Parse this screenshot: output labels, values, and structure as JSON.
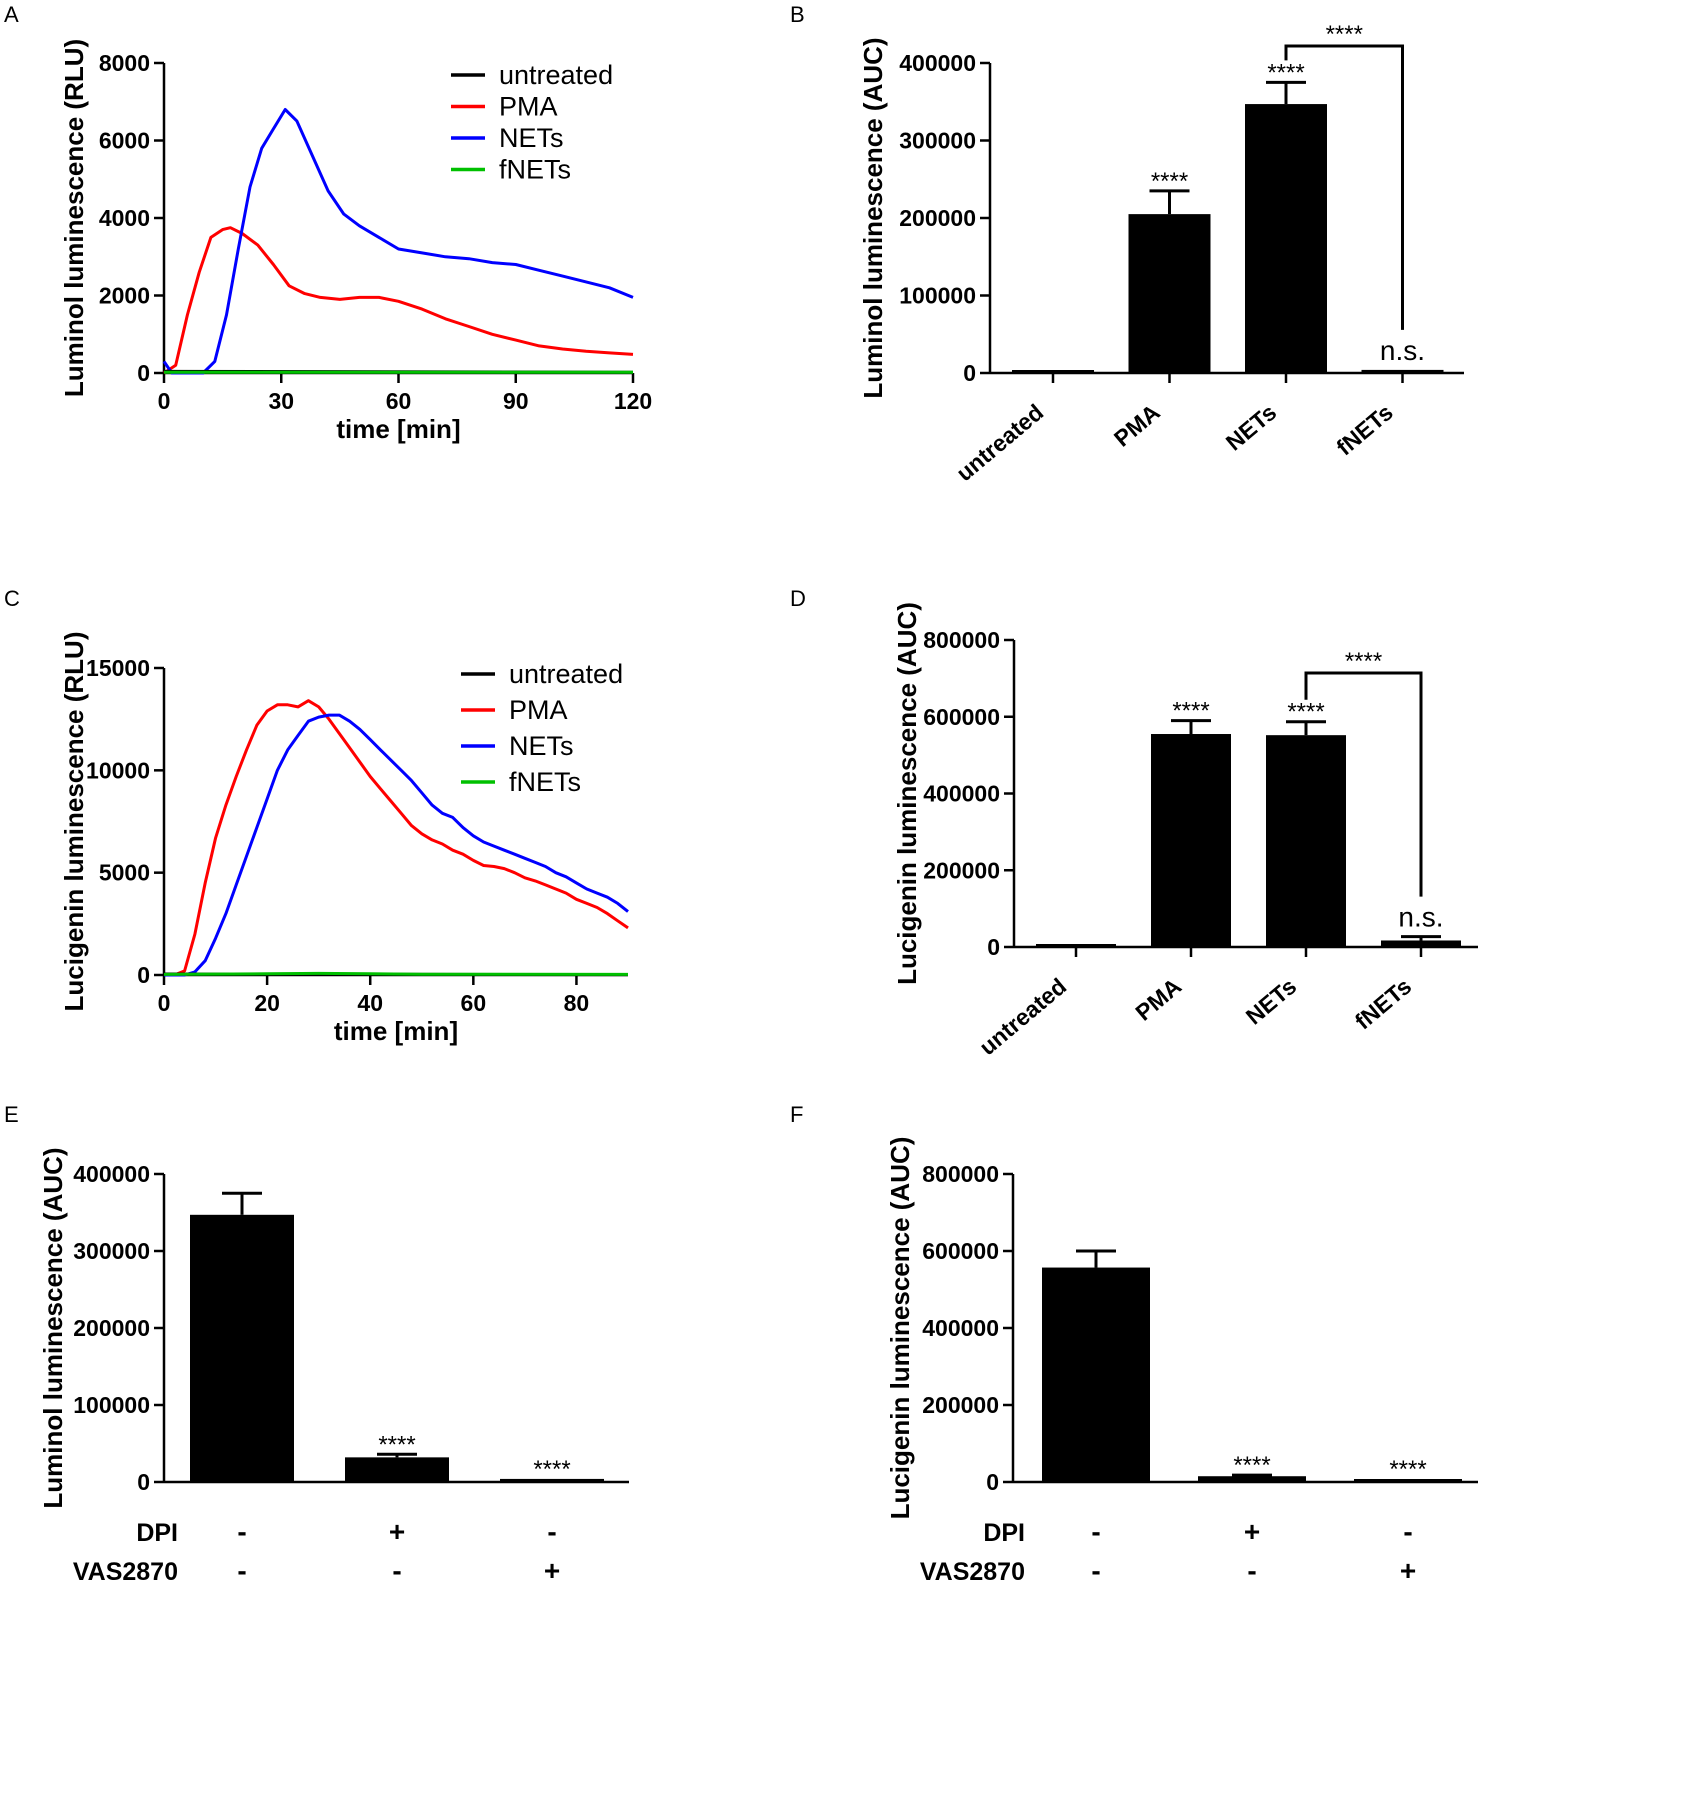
{
  "chart_data": [
    {
      "panel": "A",
      "type": "line",
      "xlabel": "time [min]",
      "ylabel": "Luminol luminescence (RLU)",
      "xlim": [
        0,
        120
      ],
      "ylim": [
        0,
        8000
      ],
      "xticks": [
        "0",
        "30",
        "60",
        "90",
        "120"
      ],
      "yticks": [
        "0",
        "2000",
        "4000",
        "6000",
        "8000"
      ],
      "legend": [
        "untreated",
        "PMA",
        "NETs",
        "fNETs"
      ],
      "series": [
        {
          "name": "untreated",
          "color": "#000000",
          "x": [
            0,
            120
          ],
          "y": [
            40,
            20
          ]
        },
        {
          "name": "PMA",
          "color": "#ff0000",
          "x": [
            0,
            3,
            6,
            9,
            12,
            15,
            17,
            20,
            24,
            28,
            32,
            36,
            40,
            45,
            50,
            55,
            60,
            66,
            72,
            78,
            84,
            90,
            96,
            102,
            108,
            114,
            120
          ],
          "y": [
            0,
            200,
            1500,
            2600,
            3500,
            3700,
            3750,
            3600,
            3300,
            2800,
            2250,
            2050,
            1950,
            1900,
            1950,
            1950,
            1850,
            1650,
            1400,
            1200,
            1000,
            850,
            700,
            620,
            560,
            520,
            480
          ]
        },
        {
          "name": "NETs",
          "color": "#0000ff",
          "x": [
            0,
            2,
            5,
            10,
            13,
            16,
            19,
            22,
            25,
            28,
            31,
            34,
            38,
            42,
            46,
            50,
            55,
            60,
            66,
            72,
            78,
            84,
            90,
            96,
            102,
            108,
            114,
            120
          ],
          "y": [
            300,
            0,
            0,
            0,
            300,
            1500,
            3200,
            4800,
            5800,
            6300,
            6800,
            6500,
            5600,
            4700,
            4100,
            3800,
            3500,
            3200,
            3100,
            3000,
            2950,
            2850,
            2800,
            2650,
            2500,
            2350,
            2200,
            1950
          ]
        },
        {
          "name": "fNETs",
          "color": "#00c000",
          "x": [
            0,
            120
          ],
          "y": [
            20,
            20
          ]
        }
      ]
    },
    {
      "panel": "B",
      "type": "bar",
      "ylabel": "Luminol luminescence (AUC)",
      "ylim": [
        0,
        400000
      ],
      "yticks": [
        "0",
        "100000",
        "200000",
        "300000",
        "400000"
      ],
      "categories": [
        "untreated",
        "PMA",
        "NETs",
        "fNETs"
      ],
      "values": [
        3000,
        205000,
        347000,
        4000
      ],
      "errors": [
        0,
        30000,
        28000,
        0
      ],
      "significance": [
        "",
        "****",
        "****",
        "n.s."
      ],
      "bracket_label": "****"
    },
    {
      "panel": "C",
      "type": "line",
      "xlabel": "time [min]",
      "ylabel": "Lucigenin luminescence (RLU)",
      "xlim": [
        0,
        90
      ],
      "ylim": [
        0,
        15000
      ],
      "xticks": [
        "0",
        "20",
        "40",
        "60",
        "80"
      ],
      "yticks": [
        "0",
        "5000",
        "10000",
        "15000"
      ],
      "legend": [
        "untreated",
        "PMA",
        "NETs",
        "fNETs"
      ],
      "series": [
        {
          "name": "untreated",
          "color": "#000000",
          "x": [
            0,
            90
          ],
          "y": [
            50,
            20
          ]
        },
        {
          "name": "PMA",
          "color": "#ff0000",
          "x": [
            0,
            2,
            4,
            6,
            8,
            10,
            12,
            14,
            16,
            18,
            20,
            22,
            24,
            26,
            28,
            30,
            32,
            34,
            36,
            38,
            40,
            42,
            44,
            46,
            48,
            50,
            52,
            54,
            56,
            58,
            60,
            62,
            64,
            66,
            68,
            70,
            72,
            74,
            76,
            78,
            80,
            82,
            84,
            86,
            88,
            90
          ],
          "y": [
            0,
            0,
            200,
            2000,
            4500,
            6700,
            8300,
            9700,
            11000,
            12200,
            12900,
            13200,
            13200,
            13100,
            13400,
            13100,
            12500,
            11800,
            11100,
            10400,
            9700,
            9100,
            8500,
            7900,
            7300,
            6900,
            6600,
            6400,
            6100,
            5900,
            5600,
            5350,
            5300,
            5200,
            5000,
            4750,
            4600,
            4400,
            4200,
            4000,
            3700,
            3500,
            3300,
            3000,
            2650,
            2300
          ]
        },
        {
          "name": "NETs",
          "color": "#0000ff",
          "x": [
            0,
            4,
            6,
            8,
            10,
            12,
            14,
            16,
            18,
            20,
            22,
            24,
            26,
            28,
            30,
            32,
            34,
            36,
            38,
            40,
            42,
            44,
            46,
            48,
            50,
            52,
            54,
            56,
            58,
            60,
            62,
            64,
            66,
            68,
            70,
            72,
            74,
            76,
            78,
            80,
            82,
            84,
            86,
            88,
            90
          ],
          "y": [
            0,
            0,
            150,
            700,
            1800,
            3000,
            4400,
            5800,
            7200,
            8600,
            10000,
            11000,
            11700,
            12400,
            12600,
            12700,
            12700,
            12400,
            12000,
            11500,
            11000,
            10500,
            10000,
            9500,
            8900,
            8300,
            7900,
            7700,
            7200,
            6800,
            6500,
            6300,
            6100,
            5900,
            5700,
            5500,
            5300,
            5000,
            4800,
            4500,
            4200,
            4000,
            3800,
            3500,
            3100
          ]
        },
        {
          "name": "fNETs",
          "color": "#00c000",
          "x": [
            0,
            20,
            30,
            40,
            50,
            90
          ],
          "y": [
            30,
            60,
            80,
            60,
            40,
            30
          ]
        }
      ]
    },
    {
      "panel": "D",
      "type": "bar",
      "ylabel": "Lucigenin luminescence (AUC)",
      "ylim": [
        0,
        800000
      ],
      "yticks": [
        "0",
        "200000",
        "400000",
        "600000",
        "800000"
      ],
      "categories": [
        "untreated",
        "PMA",
        "NETs",
        "fNETs"
      ],
      "values": [
        3000,
        555000,
        552000,
        17000
      ],
      "errors": [
        0,
        35000,
        35000,
        10000
      ],
      "significance": [
        "",
        "****",
        "****",
        "n.s."
      ],
      "bracket_label": "****"
    },
    {
      "panel": "E",
      "type": "bar",
      "ylabel": "Luminol luminescence (AUC)",
      "ylim": [
        0,
        400000
      ],
      "yticks": [
        "0",
        "100000",
        "200000",
        "300000",
        "400000"
      ],
      "values": [
        347000,
        32000,
        4000
      ],
      "errors": [
        28000,
        4000,
        0
      ],
      "significance": [
        "",
        "****",
        "****"
      ],
      "row_labels": [
        "DPI",
        "VAS2870"
      ],
      "row_values": [
        [
          "-",
          "+",
          "-"
        ],
        [
          "-",
          "-",
          "+"
        ]
      ]
    },
    {
      "panel": "F",
      "type": "bar",
      "ylabel": "Lucigenin luminescence (AUC)",
      "ylim": [
        0,
        800000
      ],
      "yticks": [
        "0",
        "200000",
        "400000",
        "600000",
        "800000"
      ],
      "values": [
        557000,
        15000,
        1500
      ],
      "errors": [
        43000,
        3000,
        0
      ],
      "significance": [
        "",
        "****",
        "****"
      ],
      "row_labels": [
        "DPI",
        "VAS2870"
      ],
      "row_values": [
        [
          "-",
          "+",
          "-"
        ],
        [
          "-",
          "-",
          "+"
        ]
      ]
    }
  ]
}
